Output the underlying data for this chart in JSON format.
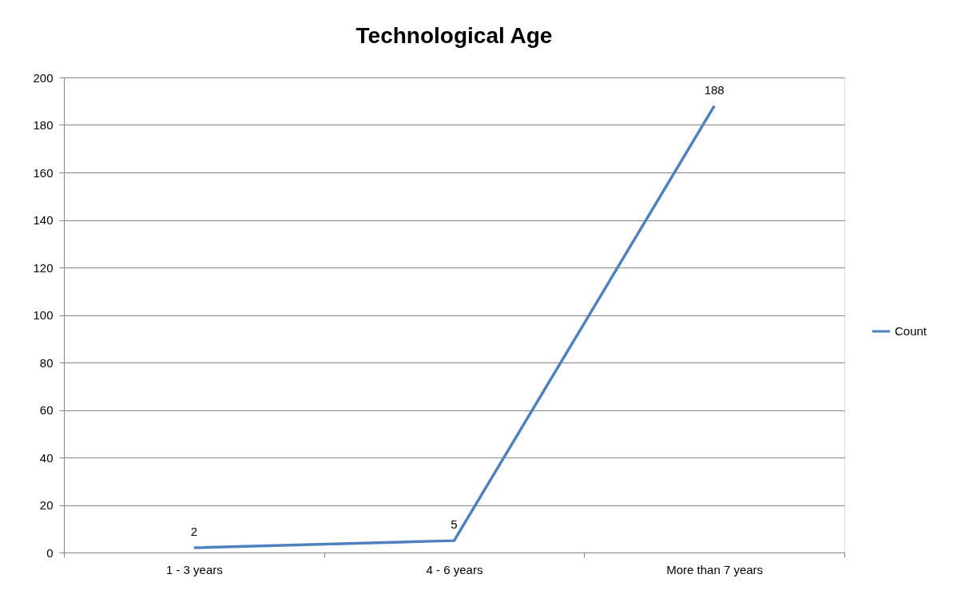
{
  "chart_data": {
    "type": "line",
    "title": "Technological Age",
    "categories": [
      "1 - 3 years",
      "4 - 6 years",
      "More than 7 years"
    ],
    "series": [
      {
        "name": "Count",
        "color": "#4f81bd",
        "values": [
          2,
          5,
          188
        ]
      }
    ],
    "ylim": [
      0,
      200
    ],
    "yticks": [
      0,
      20,
      40,
      60,
      80,
      100,
      120,
      140,
      160,
      180,
      200
    ],
    "grid": "y",
    "legend": "right",
    "data_labels": true
  }
}
